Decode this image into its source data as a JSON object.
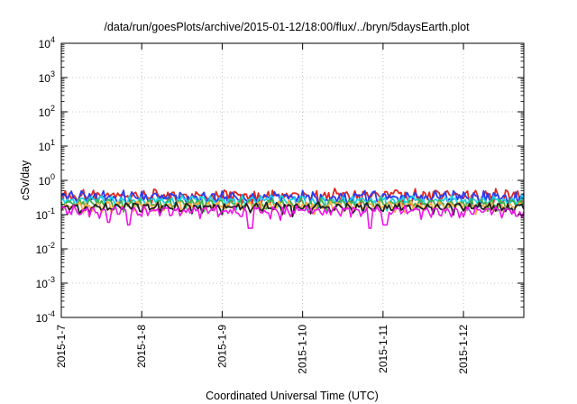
{
  "chart_data": {
    "type": "line",
    "title": "/data/run/goesPlots/archive/2015-01-12/18:00/flux/../bryn/5daysEarth.plot",
    "xlabel": "Coordinated Universal Time (UTC)",
    "ylabel": "cSv/day",
    "yscale": "log",
    "ylim": [
      0.0001,
      10000
    ],
    "y_ticks": [
      {
        "base": "10",
        "exp": "4"
      },
      {
        "base": "10",
        "exp": "3"
      },
      {
        "base": "10",
        "exp": "2"
      },
      {
        "base": "10",
        "exp": "1"
      },
      {
        "base": "10",
        "exp": "0"
      },
      {
        "base": "10",
        "exp": "-1"
      },
      {
        "base": "10",
        "exp": "-2"
      },
      {
        "base": "10",
        "exp": "-3"
      },
      {
        "base": "10",
        "exp": "-4"
      }
    ],
    "x_start": "2015-01-07T00:00",
    "x_end": "2015-01-12T18:00",
    "x_ticks": [
      "2015-1-7",
      "2015-1-8",
      "2015-1-9",
      "2015-1-10",
      "2015-1-11",
      "2015-1-12"
    ],
    "grid": true,
    "legend": "none",
    "series": [
      {
        "color": "#e0281e",
        "base": 0.36,
        "amp": 0.12
      },
      {
        "color": "#2a3cf0",
        "base": 0.33,
        "amp": 0.1
      },
      {
        "color": "#17d4e6",
        "base": 0.26,
        "amp": 0.06
      },
      {
        "color": "#3fb04a",
        "base": 0.21,
        "amp": 0.04
      },
      {
        "color": "#ffae42",
        "base": 0.18,
        "amp": 0.03
      },
      {
        "color": "#222222",
        "base": 0.165,
        "amp": 0.03
      },
      {
        "color": "#ee16e8",
        "base": 0.13,
        "amp": 0.03,
        "dips": [
          {
            "t": "2015-01-07T14:00",
            "v": 0.06
          },
          {
            "t": "2015-01-07T20:00",
            "v": 0.05
          },
          {
            "t": "2015-01-09T08:30",
            "v": 0.04
          },
          {
            "t": "2015-01-10T20:00",
            "v": 0.04
          },
          {
            "t": "2015-01-11T00:30",
            "v": 0.05
          },
          {
            "t": "2015-01-12T16:00",
            "v": 0.09
          }
        ]
      }
    ]
  }
}
